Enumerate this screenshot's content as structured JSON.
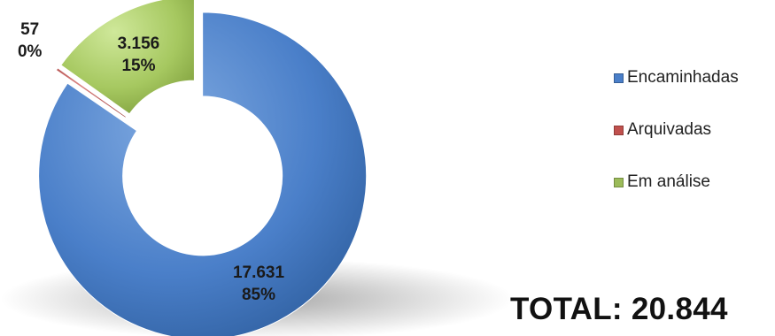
{
  "chart_data": {
    "type": "pie",
    "variant": "donut",
    "categories": [
      "Encaminhadas",
      "Arquivadas",
      "Em análise"
    ],
    "values": [
      17631,
      57,
      3156
    ],
    "value_labels": [
      "17.631",
      "57",
      "3.156"
    ],
    "percent_labels": [
      "85%",
      "0%",
      "15%"
    ],
    "colors": [
      "#4a7fc9",
      "#c0504d",
      "#9bbb59"
    ],
    "legend_position": "right",
    "exploded": true
  },
  "total_label": "TOTAL: 20.844"
}
